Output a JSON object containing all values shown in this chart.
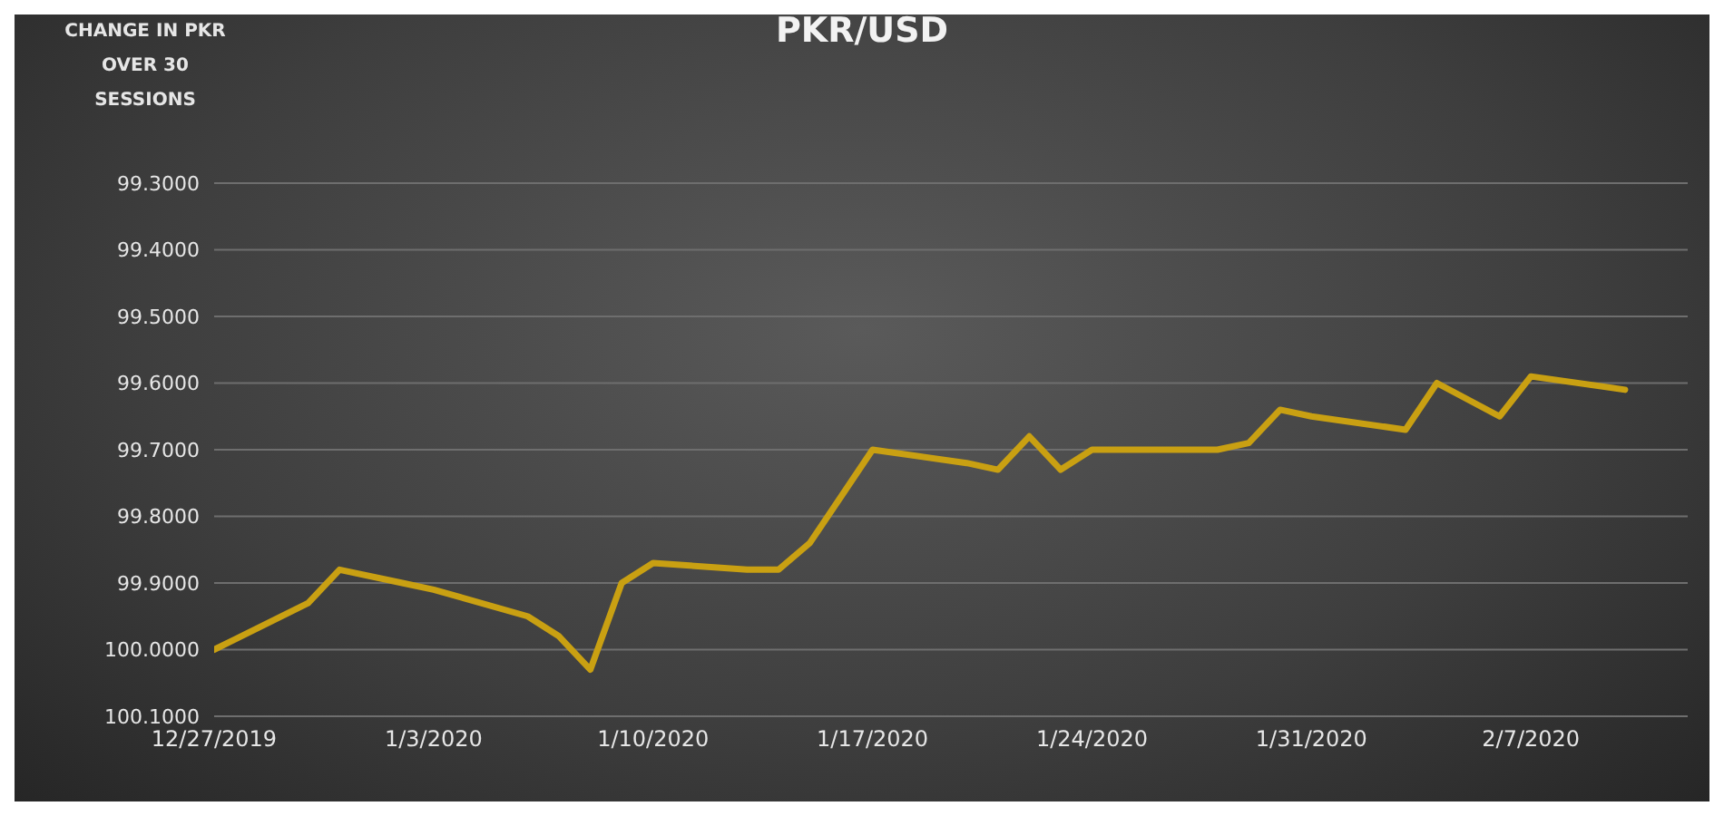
{
  "chart_data": {
    "type": "line",
    "title": "PKR/USD",
    "ylabel": "CHANGE IN PKR OVER 30 SESSIONS",
    "x": [
      "2019-12-27",
      "2019-12-30",
      "2019-12-31",
      "2020-01-02",
      "2020-01-03",
      "2020-01-06",
      "2020-01-07",
      "2020-01-08",
      "2020-01-09",
      "2020-01-10",
      "2020-01-13",
      "2020-01-14",
      "2020-01-15",
      "2020-01-16",
      "2020-01-17",
      "2020-01-20",
      "2020-01-21",
      "2020-01-22",
      "2020-01-23",
      "2020-01-24",
      "2020-01-27",
      "2020-01-28",
      "2020-01-29",
      "2020-01-30",
      "2020-01-31",
      "2020-02-03",
      "2020-02-04",
      "2020-02-06",
      "2020-02-07",
      "2020-02-10"
    ],
    "series": [
      {
        "color": "#c9a012",
        "values": [
          100.0,
          99.93,
          99.88,
          99.9,
          99.91,
          99.95,
          99.98,
          100.03,
          99.9,
          99.87,
          99.88,
          99.88,
          99.84,
          99.77,
          99.7,
          99.72,
          99.73,
          99.68,
          99.73,
          99.7,
          99.7,
          99.7,
          99.69,
          99.64,
          99.65,
          99.67,
          99.6,
          99.65,
          99.59,
          99.61
        ]
      }
    ],
    "xlim": [
      "2019-12-27",
      "2020-02-12"
    ],
    "xticks": [
      {
        "value": "2019-12-27",
        "label": "12/27/2019"
      },
      {
        "value": "2020-01-03",
        "label": "1/3/2020"
      },
      {
        "value": "2020-01-10",
        "label": "1/10/2020"
      },
      {
        "value": "2020-01-17",
        "label": "1/17/2020"
      },
      {
        "value": "2020-01-24",
        "label": "1/24/2020"
      },
      {
        "value": "2020-01-31",
        "label": "1/31/2020"
      },
      {
        "value": "2020-02-07",
        "label": "2/7/2020"
      }
    ],
    "ylim": [
      100.1,
      99.3
    ],
    "yticks": [
      {
        "value": 99.3,
        "label": "99.3000"
      },
      {
        "value": 99.4,
        "label": "99.4000"
      },
      {
        "value": 99.5,
        "label": "99.5000"
      },
      {
        "value": 99.6,
        "label": "99.6000"
      },
      {
        "value": 99.7,
        "label": "99.7000"
      },
      {
        "value": 99.8,
        "label": "99.8000"
      },
      {
        "value": 99.9,
        "label": "99.9000"
      },
      {
        "value": 100.0,
        "label": "100.0000"
      },
      {
        "value": 100.1,
        "label": "100.1000"
      }
    ],
    "grid": "y",
    "marker": "none",
    "line_style": "solid"
  }
}
